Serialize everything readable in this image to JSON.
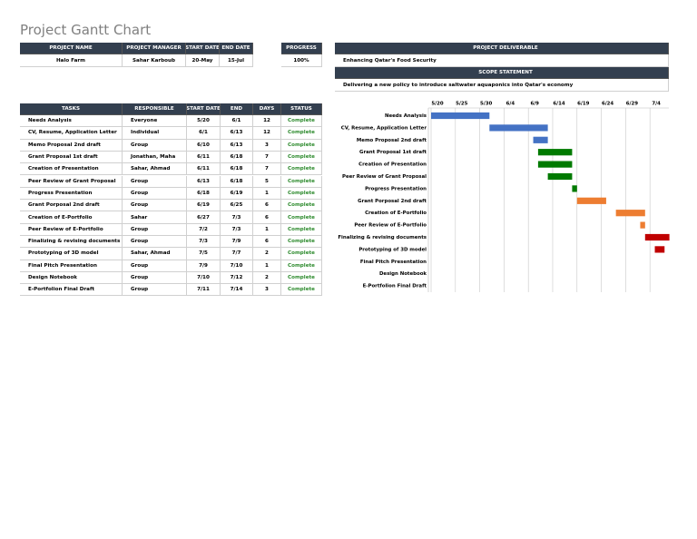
{
  "title": "Project Gantt Chart",
  "project_info": {
    "headers": [
      "PROJECT NAME",
      "PROJECT MANAGER",
      "START DATE",
      "END DATE"
    ],
    "values": [
      "Halo Farm",
      "Sahar Karboub",
      "20-May",
      "15-Jul"
    ]
  },
  "progress": {
    "header": "PROGRESS",
    "value": "100%"
  },
  "deliverable": {
    "header": "PROJECT DELIVERABLE",
    "value": "Enhancing Qatar's Food Security",
    "scope_header": "SCOPE STATEMENT",
    "scope_value": "Delivering a new policy to introduce saltwater aquaponics into Qatar's economy"
  },
  "table": {
    "headers": [
      "TASKS",
      "RESPONSIBLE",
      "START DATE",
      "END",
      "DAYS",
      "STATUS"
    ],
    "rows": [
      [
        "Needs Analysis",
        "Everyone",
        "5/20",
        "6/1",
        12,
        "Complete"
      ],
      [
        "CV, Resume, Application Letter",
        "Individual",
        "6/1",
        "6/13",
        12,
        "Complete"
      ],
      [
        "Memo Proposal 2nd draft",
        "Group",
        "6/10",
        "6/13",
        3,
        "Complete"
      ],
      [
        "Grant Proposal 1st draft",
        "Jonathan, Maha",
        "6/11",
        "6/18",
        7,
        "Complete"
      ],
      [
        "Creation of Presentation",
        "Sahar, Ahmad",
        "6/11",
        "6/18",
        7,
        "Complete"
      ],
      [
        "Peer Review of Grant Proposal",
        "Group",
        "6/13",
        "6/18",
        5,
        "Complete"
      ],
      [
        "Progress Presentation",
        "Group",
        "6/18",
        "6/19",
        1,
        "Complete"
      ],
      [
        "Grant Porposal 2nd draft",
        "Group",
        "6/19",
        "6/25",
        6,
        "Complete"
      ],
      [
        "Creation of E-Portfolio",
        "Sahar",
        "6/27",
        "7/3",
        6,
        "Complete"
      ],
      [
        "Peer Review of E-Portfolio",
        "Group",
        "7/2",
        "7/3",
        1,
        "Complete"
      ],
      [
        "Finalizing & revising documents",
        "Group",
        "7/3",
        "7/9",
        6,
        "Complete"
      ],
      [
        "Prototyping of 3D model",
        "Sahar, Ahmad",
        "7/5",
        "7/7",
        2,
        "Complete"
      ],
      [
        "Final Pitch Presentation",
        "Group",
        "7/9",
        "7/10",
        1,
        "Complete"
      ],
      [
        "Design Notebook",
        "Group",
        "7/10",
        "7/12",
        2,
        "Complete"
      ],
      [
        "E-Portfolion Final Draft",
        "Group",
        "7/11",
        "7/14",
        3,
        "Complete"
      ]
    ]
  },
  "gantt": {
    "xticks": [
      "5/20",
      "5/25",
      "5/30",
      "6/4",
      "6/9",
      "6/14",
      "6/19",
      "6/24",
      "6/29",
      "7/4"
    ],
    "xlim": [
      "5/20",
      "7/8"
    ],
    "colors": [
      "#4472c4",
      "#4472c4",
      "#4472c4",
      "#007a00",
      "#007a00",
      "#007a00",
      "#007a00",
      "#ed7d31",
      "#ed7d31",
      "#ed7d31",
      "#c00000",
      "#c00000",
      "#c00000",
      null,
      null,
      null
    ]
  }
}
